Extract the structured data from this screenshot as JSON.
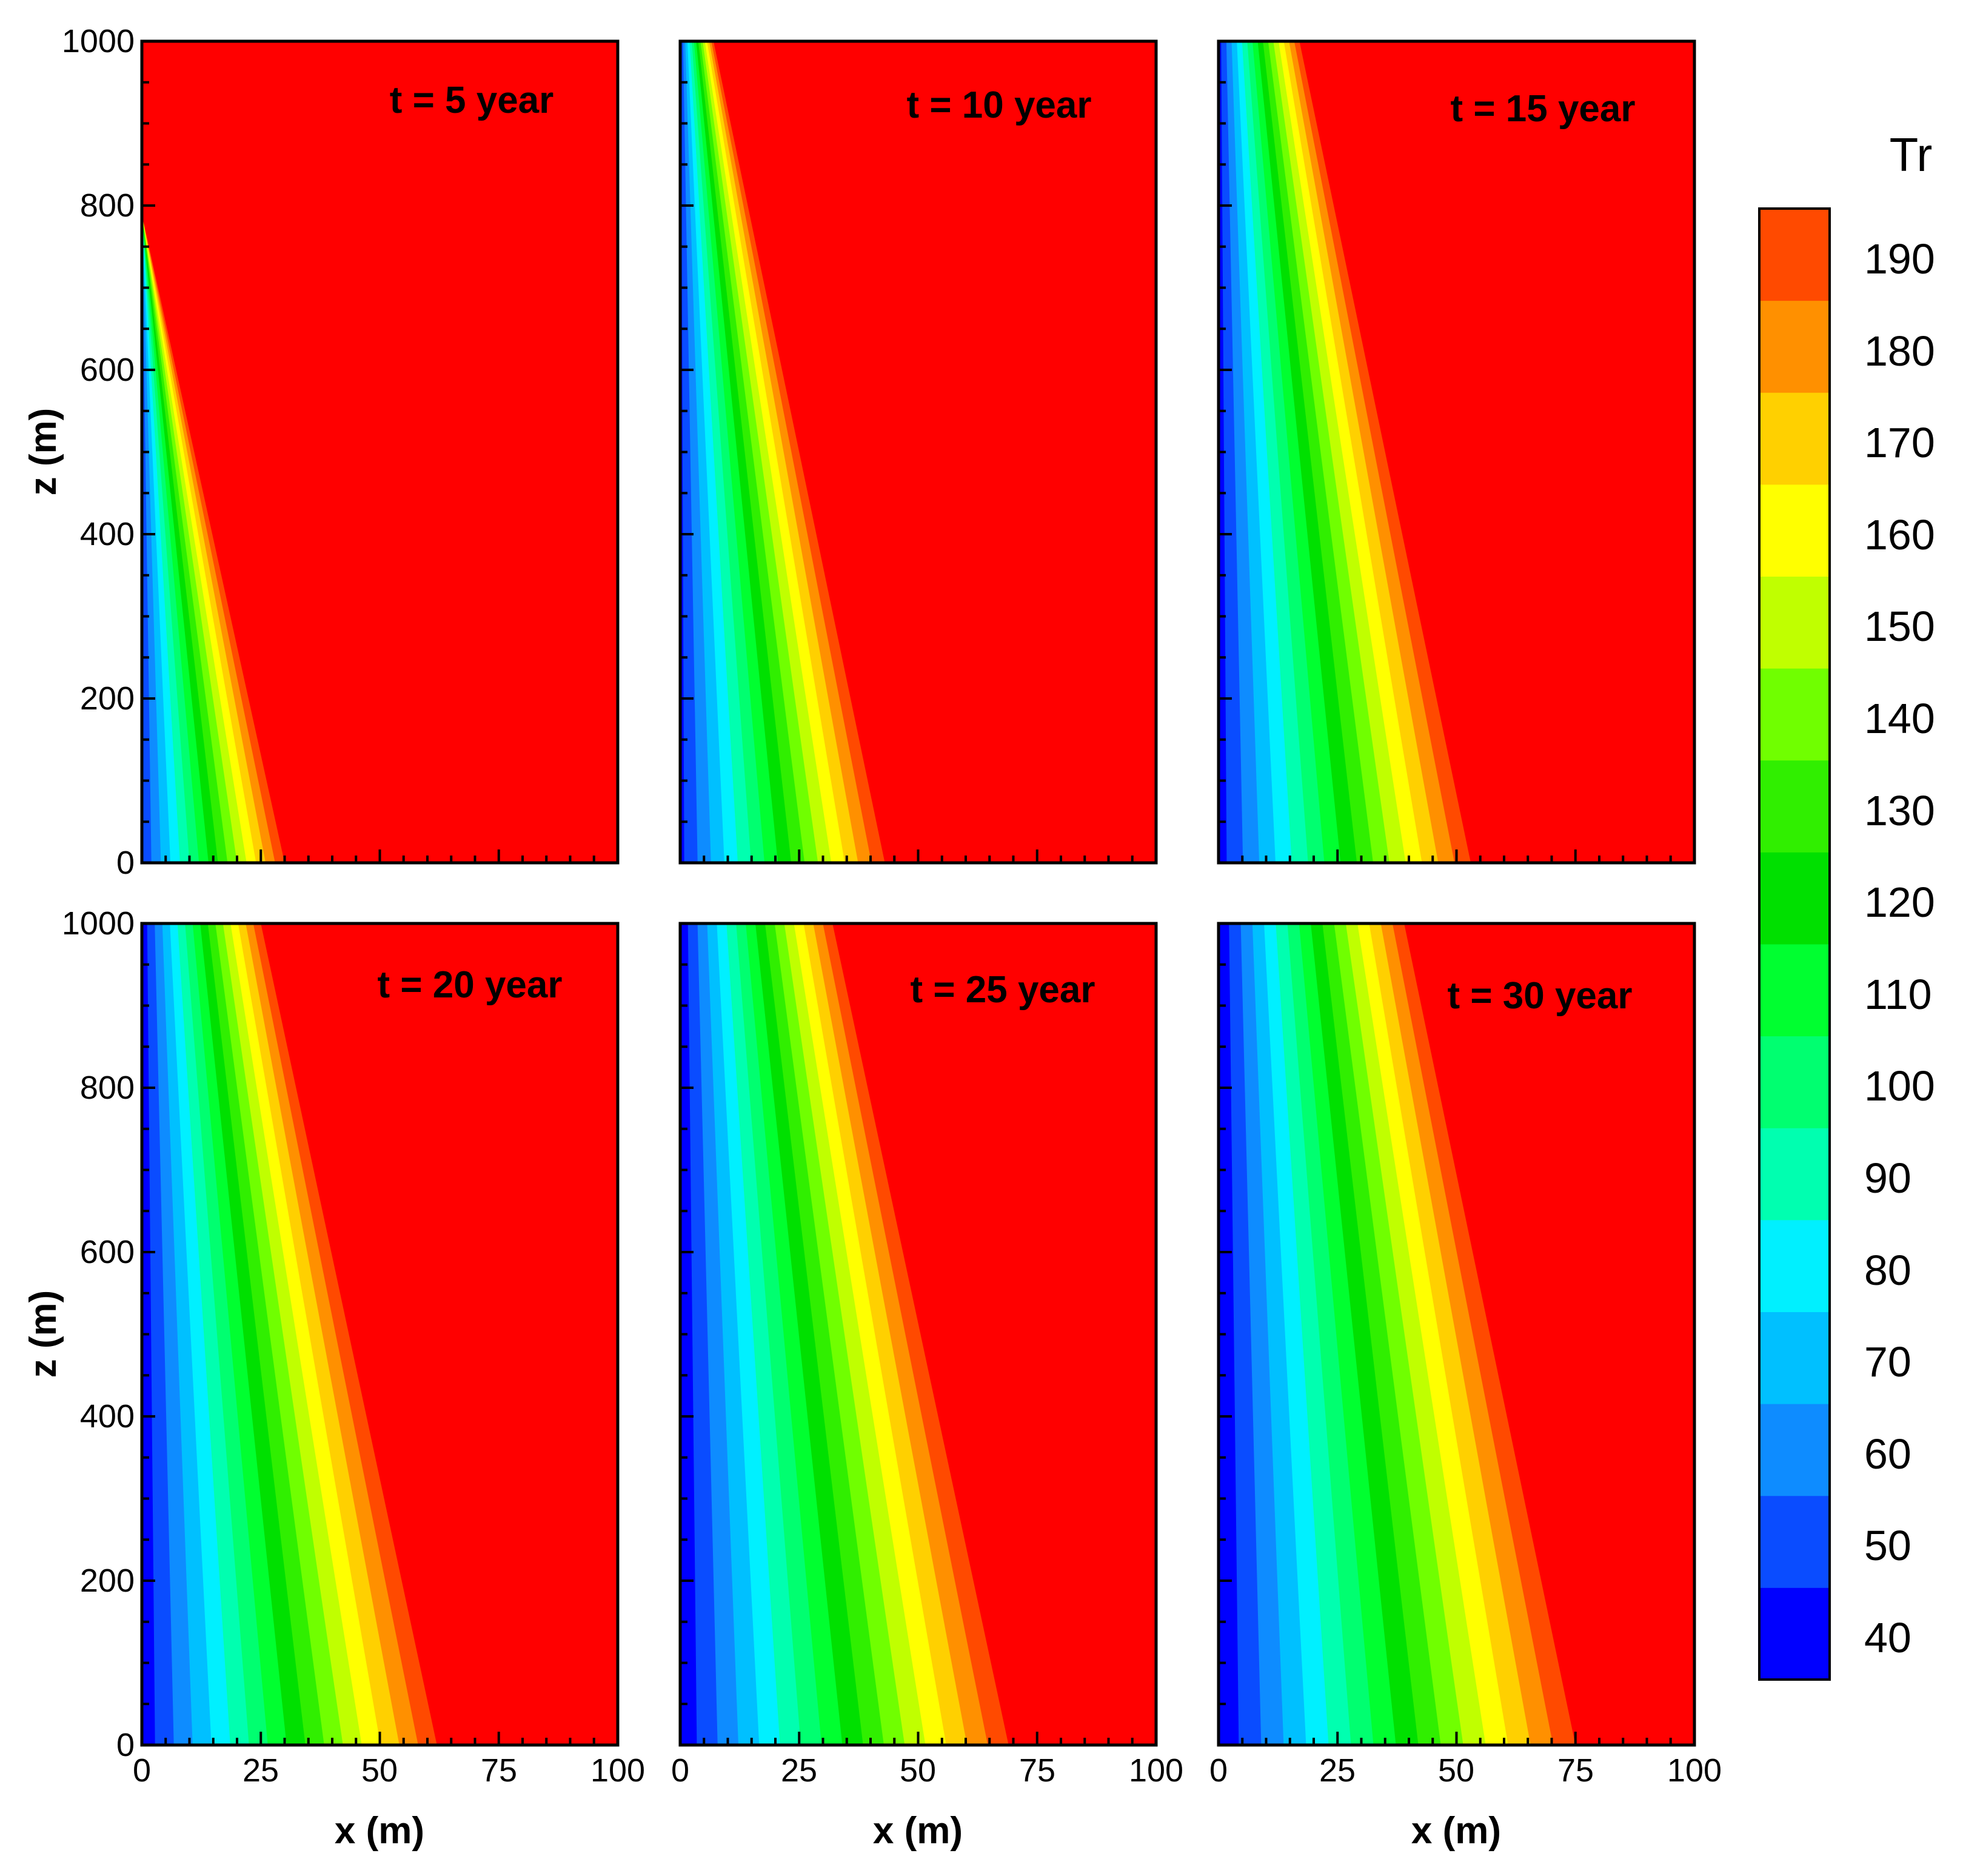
{
  "chart_data": {
    "type": "heatmap",
    "variable": "Tr",
    "xlabel": "x (m)",
    "ylabel": "z (m)",
    "xlim": [
      0,
      100
    ],
    "ylim": [
      0,
      1000
    ],
    "x_ticks": [
      "0",
      "25",
      "50",
      "75",
      "100"
    ],
    "y_ticks": [
      "0",
      "200",
      "400",
      "600",
      "800",
      "1000"
    ],
    "colorbar": {
      "title": "Tr",
      "range": [
        35,
        195
      ],
      "ticks": [
        "40",
        "50",
        "60",
        "70",
        "80",
        "90",
        "100",
        "110",
        "120",
        "130",
        "140",
        "150",
        "160",
        "170",
        "180",
        "190"
      ],
      "levels": [
        35,
        45,
        55,
        65,
        75,
        85,
        95,
        105,
        115,
        125,
        135,
        145,
        155,
        165,
        175,
        185,
        195
      ],
      "colors": [
        "#0000ff",
        "#0a4cff",
        "#0e8cff",
        "#00c0ff",
        "#00f0ff",
        "#00ffb0",
        "#00ff70",
        "#00ff30",
        "#00e000",
        "#30ef00",
        "#70ff00",
        "#c0ff00",
        "#ffff00",
        "#ffd000",
        "#ff9000",
        "#ff4a00",
        "#ff0000"
      ]
    },
    "max_value": 195,
    "panels": [
      {
        "title": "t = 5 year",
        "front_x_at_z0": 30,
        "front_x_at_z1000": -8,
        "min_value_at_origin": 45
      },
      {
        "title": "t = 10 year",
        "front_x_at_z0": 43,
        "front_x_at_z1000": 7,
        "min_value_at_origin": 42
      },
      {
        "title": "t = 15 year",
        "front_x_at_z0": 53,
        "front_x_at_z1000": 17,
        "min_value_at_origin": 40
      },
      {
        "title": "t = 20 year",
        "front_x_at_z0": 62,
        "front_x_at_z1000": 25,
        "min_value_at_origin": 38
      },
      {
        "title": "t = 25 year",
        "front_x_at_z0": 69,
        "front_x_at_z1000": 32,
        "min_value_at_origin": 37
      },
      {
        "title": "t = 30 year",
        "front_x_at_z0": 75,
        "front_x_at_z1000": 39,
        "min_value_at_origin": 36
      }
    ]
  }
}
